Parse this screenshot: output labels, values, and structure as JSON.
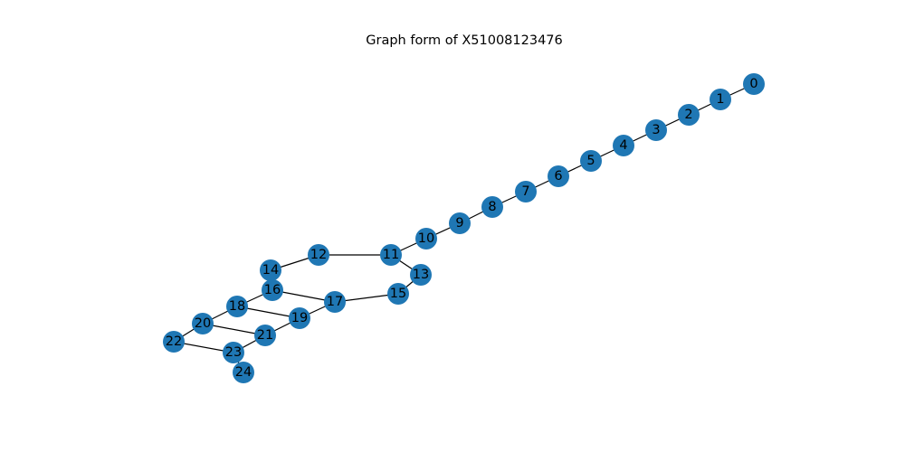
{
  "title": "Graph form of X51008123476",
  "colors": {
    "node_fill": "#1f77b4",
    "edge": "#000000",
    "label": "#000000",
    "background": "#ffffff"
  },
  "graph": {
    "nodes": [
      {
        "id": "0"
      },
      {
        "id": "1"
      },
      {
        "id": "2"
      },
      {
        "id": "3"
      },
      {
        "id": "4"
      },
      {
        "id": "5"
      },
      {
        "id": "6"
      },
      {
        "id": "7"
      },
      {
        "id": "8"
      },
      {
        "id": "9"
      },
      {
        "id": "10"
      },
      {
        "id": "11"
      },
      {
        "id": "12"
      },
      {
        "id": "13"
      },
      {
        "id": "14"
      },
      {
        "id": "15"
      },
      {
        "id": "16"
      },
      {
        "id": "17"
      },
      {
        "id": "18"
      },
      {
        "id": "19"
      },
      {
        "id": "20"
      },
      {
        "id": "21"
      },
      {
        "id": "22"
      },
      {
        "id": "23"
      },
      {
        "id": "24"
      }
    ],
    "edges": [
      [
        "0",
        "1"
      ],
      [
        "1",
        "2"
      ],
      [
        "2",
        "3"
      ],
      [
        "3",
        "4"
      ],
      [
        "4",
        "5"
      ],
      [
        "5",
        "6"
      ],
      [
        "6",
        "7"
      ],
      [
        "7",
        "8"
      ],
      [
        "8",
        "9"
      ],
      [
        "9",
        "10"
      ],
      [
        "10",
        "11"
      ],
      [
        "11",
        "12"
      ],
      [
        "11",
        "13"
      ],
      [
        "12",
        "14"
      ],
      [
        "13",
        "15"
      ],
      [
        "15",
        "17"
      ],
      [
        "16",
        "17"
      ],
      [
        "16",
        "18"
      ],
      [
        "17",
        "19"
      ],
      [
        "18",
        "19"
      ],
      [
        "18",
        "20"
      ],
      [
        "19",
        "21"
      ],
      [
        "20",
        "21"
      ],
      [
        "20",
        "22"
      ],
      [
        "21",
        "23"
      ],
      [
        "22",
        "23"
      ],
      [
        "23",
        "24"
      ]
    ]
  }
}
